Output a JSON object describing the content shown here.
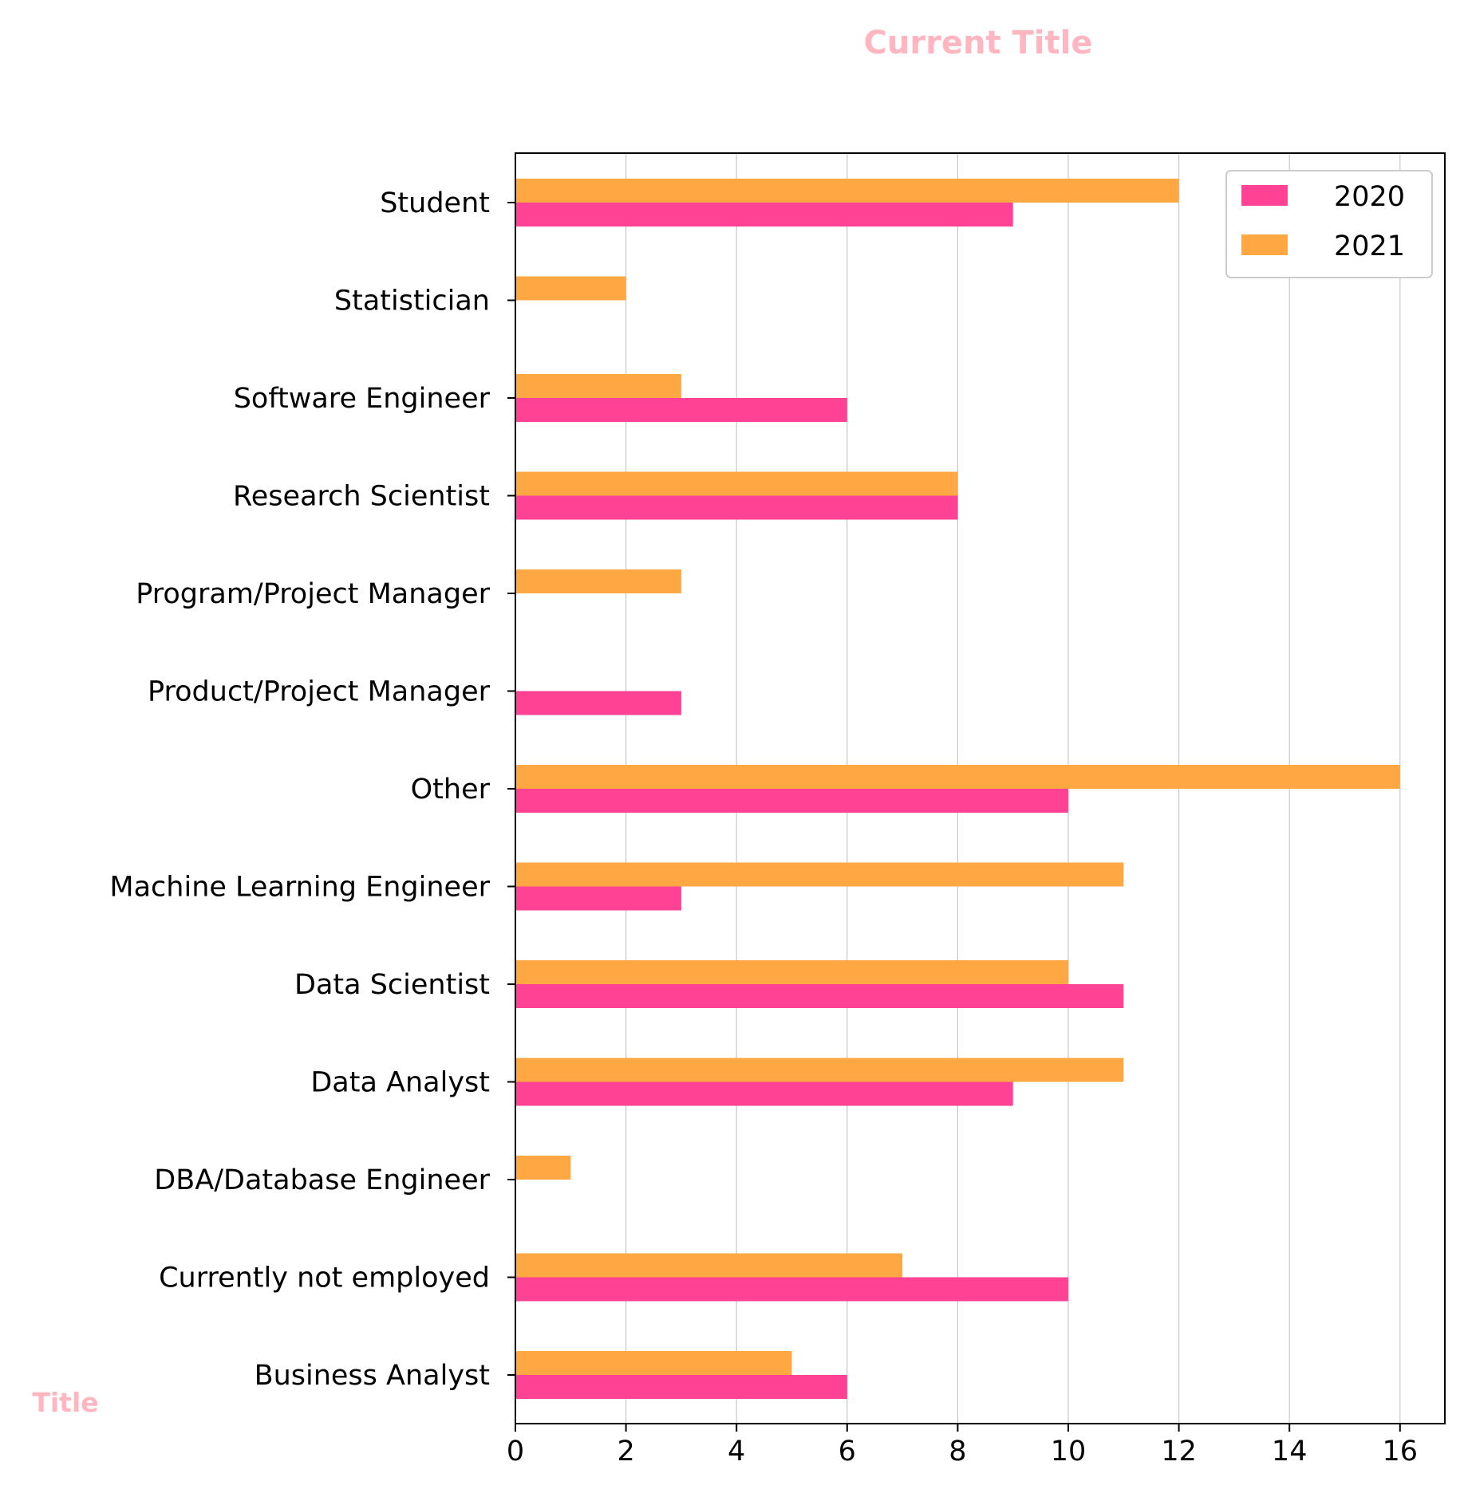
{
  "chart_data": {
    "type": "bar",
    "orientation": "horizontal",
    "title": "Current Title",
    "ylabel": "Title",
    "xlabel": "",
    "xlim": [
      0,
      16.8
    ],
    "xticks": [
      0,
      2,
      4,
      6,
      8,
      10,
      12,
      14,
      16
    ],
    "grid": "vertical",
    "legend_position": "top-right",
    "categories": [
      "Student",
      "Statistician",
      "Software Engineer",
      "Research Scientist",
      "Program/Project Manager",
      "Product/Project Manager",
      "Other",
      "Machine Learning Engineer",
      "Data Scientist",
      "Data Analyst",
      "DBA/Database Engineer",
      "Currently not employed",
      "Business Analyst"
    ],
    "series": [
      {
        "name": "2020",
        "color": "#ff4294",
        "values": [
          9,
          0,
          6,
          8,
          0,
          3,
          10,
          3,
          11,
          9,
          0,
          10,
          6
        ]
      },
      {
        "name": "2021",
        "color": "#ffa843",
        "values": [
          12,
          2,
          3,
          8,
          3,
          0,
          16,
          11,
          10,
          11,
          1,
          7,
          5
        ]
      }
    ],
    "title_color": "#ffb6c1"
  }
}
